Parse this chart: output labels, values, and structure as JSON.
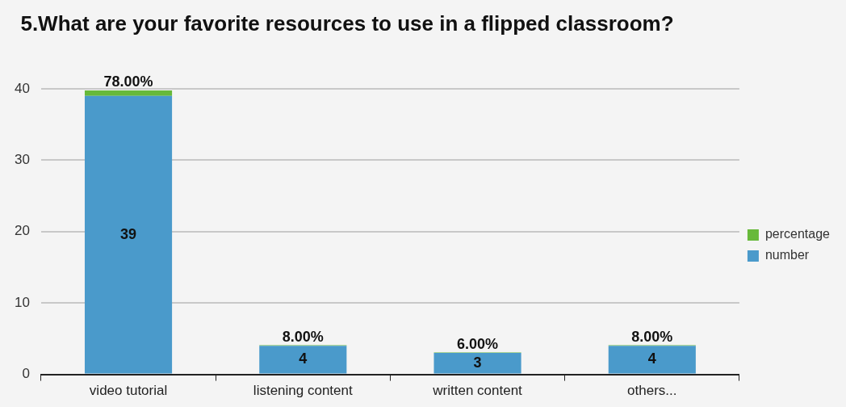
{
  "chart_data": {
    "type": "bar",
    "title": "5.What are your favorite resources to use in a flipped classroom?",
    "categories": [
      "video tutorial",
      "listening content",
      "written content",
      "others..."
    ],
    "stacked": true,
    "series": [
      {
        "name": "number",
        "color": "#4a9acb",
        "values": [
          39,
          4,
          3,
          4
        ],
        "value_labels": [
          "39",
          "4",
          "3",
          "4"
        ]
      },
      {
        "name": "percentage",
        "color": "#67b93a",
        "values": [
          0.78,
          0.08,
          0.06,
          0.08
        ],
        "value_labels": [
          "78.00%",
          "8.00%",
          "6.00%",
          "8.00%"
        ]
      }
    ],
    "ylim": [
      0,
      40
    ],
    "yticks": [
      0,
      10,
      20,
      30,
      40
    ],
    "grid": "y",
    "legend": "right"
  }
}
